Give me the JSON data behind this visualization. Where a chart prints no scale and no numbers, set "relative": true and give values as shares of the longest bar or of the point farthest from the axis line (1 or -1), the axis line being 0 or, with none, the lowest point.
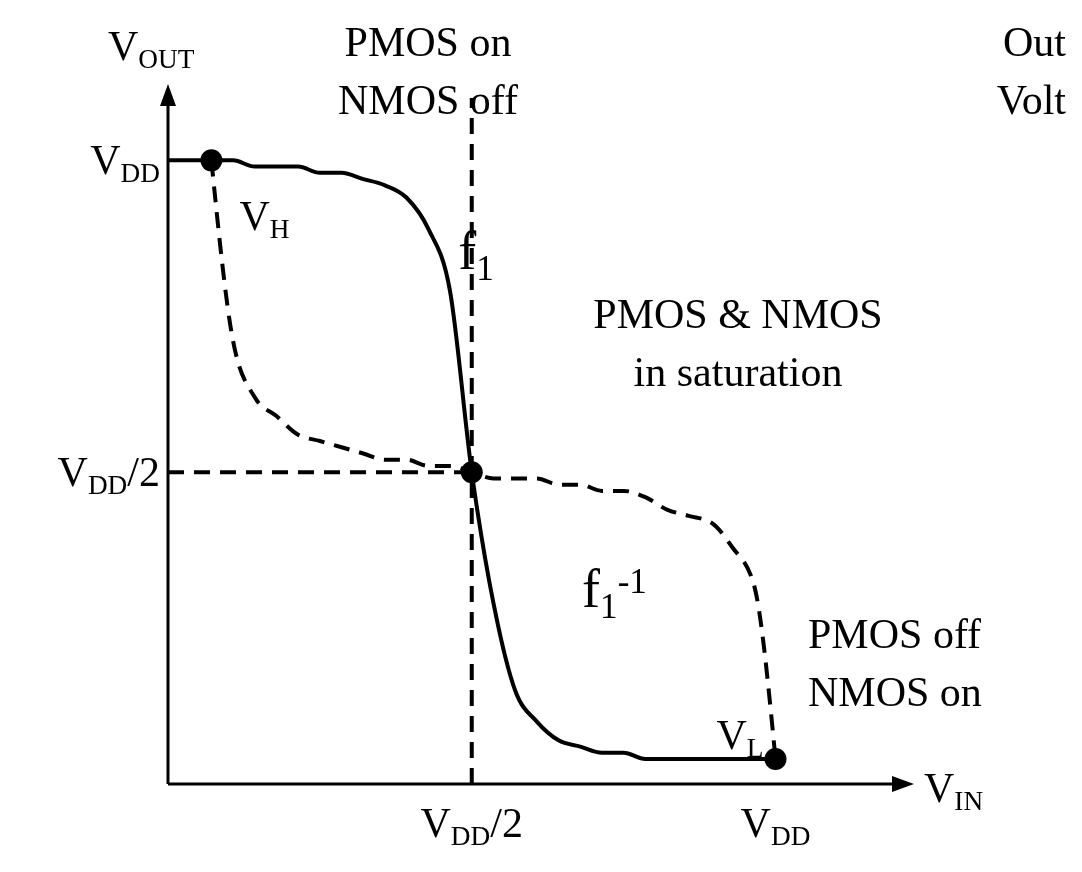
{
  "chart_data": {
    "type": "line",
    "xlabel": "V$_{IN}$",
    "ylabel": "V$_{OUT}$",
    "relative": true,
    "categories": [
      null,
      null,
      null,
      null,
      null,
      null,
      null,
      null,
      null,
      null,
      null,
      null,
      null,
      null,
      "V$_{DD}$/2",
      null,
      null,
      null,
      null,
      null,
      null,
      null,
      null,
      null,
      null,
      null,
      null,
      null,
      "V$_{DD}$",
      null,
      null,
      null,
      null,
      null
    ],
    "series": [
      {
        "name": "f$_{1}$",
        "color": "#000000",
        "line_style": "solid",
        "values": [
          1.0,
          1.0,
          1.0,
          1.0,
          0.99,
          0.99,
          0.99,
          0.98,
          0.98,
          0.97,
          0.96,
          0.94,
          0.89,
          0.79,
          0.5,
          0.29,
          0.15,
          0.1,
          0.07,
          0.06,
          0.05,
          0.05,
          0.04,
          0.04,
          0.04,
          0.04,
          0.04,
          0.04,
          0.04,
          null,
          null,
          null,
          null,
          null
        ]
      },
      {
        "name": "f$_{1}$$^{-1}$",
        "color": "#000000",
        "line_style": "dashed",
        "values": [
          null,
          null,
          1.0,
          0.71,
          0.62,
          0.59,
          0.56,
          0.55,
          0.54,
          0.53,
          0.52,
          0.52,
          0.51,
          0.51,
          0.5,
          0.49,
          0.49,
          0.49,
          0.48,
          0.48,
          0.47,
          0.47,
          0.46,
          0.44,
          0.43,
          0.42,
          0.38,
          0.32,
          0.04,
          null,
          null,
          null,
          null,
          null
        ]
      },
      {
        "type": "scatter",
        "color": "#000000",
        "marker": "circle",
        "values": [
          null,
          null,
          1.0,
          null,
          null,
          null,
          null,
          null,
          null,
          null,
          null,
          null,
          null,
          null,
          0.5,
          null,
          null,
          null,
          null,
          null,
          null,
          null,
          null,
          null,
          null,
          null,
          null,
          null,
          0.04,
          null,
          null,
          null,
          null,
          null
        ]
      }
    ],
    "ref_lines": [
      {
        "axis": "y",
        "value": 0.5,
        "color": "#000000",
        "line_style": "dashed"
      },
      {
        "axis": "x",
        "value": "V$_{DD}$/2",
        "color": "#000000",
        "line_style": "dashed"
      }
    ],
    "annotations": [
      "PMOS on\nNMOS off",
      "PMOS & NMOS\nin saturation",
      "PMOS off\nNMOS on",
      "Out\nVolt",
      {
        "text": "V$_{H}$",
        "y": 1.0
      },
      {
        "text": "V$_{L}$",
        "x": "V$_{DD}$",
        "y": 0.04
      },
      "V$_{DD}$/2",
      "V$_{DD}$"
    ]
  }
}
